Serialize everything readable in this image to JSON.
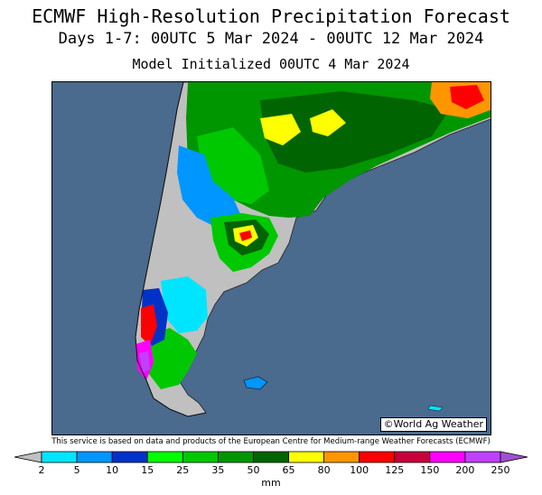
{
  "header": {
    "title": "ECMWF High-Resolution Precipitation Forecast",
    "period": "Days 1-7: 00UTC 5 Mar 2024 - 00UTC 12 Mar 2024",
    "init": "Model Initialized 00UTC 4 Mar 2024"
  },
  "map": {
    "region": "southern South America",
    "credit": "©World Ag Weather",
    "ocean_color": "#4a6a8e",
    "land_dry_color": "#c0c0c0"
  },
  "disclaimer": "This service is based on data and products of the European Centre for Medium-range Weather Forecasts (ECMWF)",
  "legend": {
    "unit": "mm",
    "ticks": [
      "2",
      "5",
      "10",
      "15",
      "25",
      "35",
      "50",
      "65",
      "80",
      "100",
      "125",
      "150",
      "200",
      "250"
    ],
    "colors": [
      "#00e5ff",
      "#0096ff",
      "#0032c8",
      "#00ff00",
      "#00c800",
      "#009600",
      "#006400",
      "#ffff00",
      "#ff9600",
      "#ff0000",
      "#c8003c",
      "#ff00ff",
      "#c040ff"
    ],
    "low_color": "#c0c0c0",
    "high_color": "#a050d0"
  }
}
